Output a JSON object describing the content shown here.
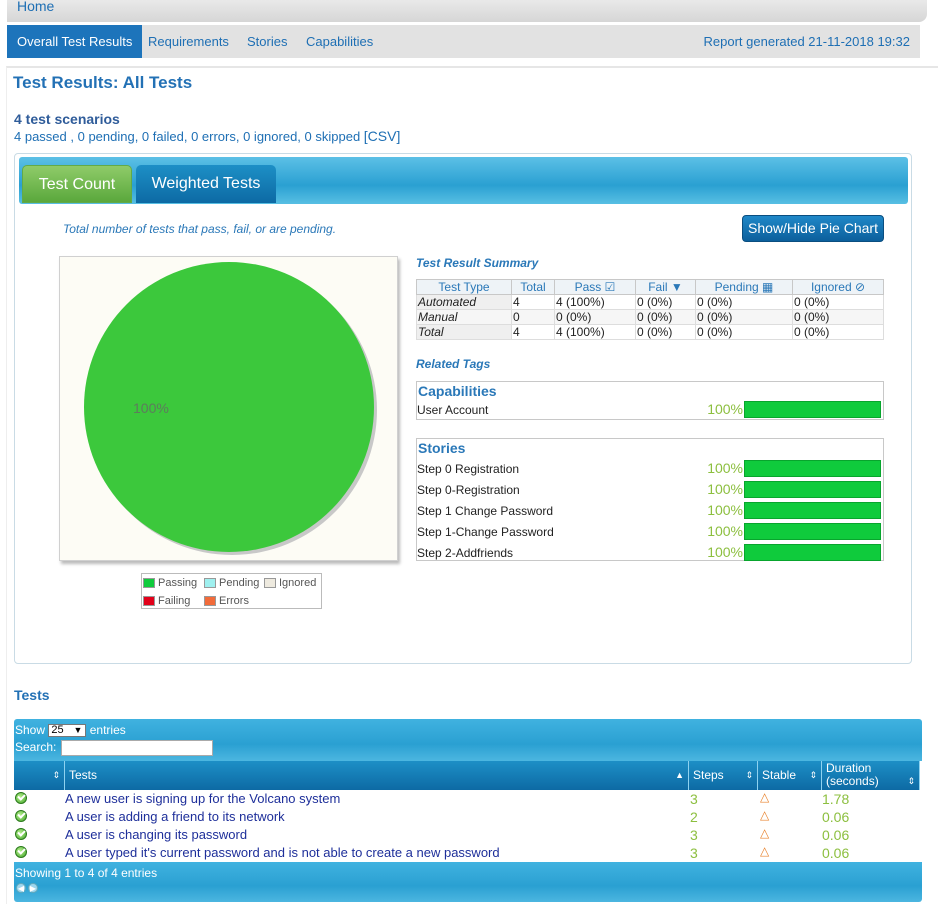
{
  "topbar": {
    "home": "Home"
  },
  "nav": {
    "tabs": [
      {
        "label": "Overall Test Results",
        "active": true
      },
      {
        "label": "Requirements"
      },
      {
        "label": "Stories"
      },
      {
        "label": "Capabilities"
      }
    ],
    "report_generated": "Report generated 21-11-2018 19:32"
  },
  "title": "Test Results: All Tests",
  "scenarios": {
    "count_label": "4 test scenarios",
    "summary": "4 passed , 0 pending, 0 failed, 0 errors, 0 ignored, 0 skipped",
    "csv": "[CSV]"
  },
  "panel": {
    "tabs": [
      "Test Count",
      "Weighted Tests"
    ],
    "caption": "Total number of tests that pass, fail, or are pending.",
    "pie_button": "Show/Hide Pie Chart"
  },
  "chart_data": {
    "type": "pie",
    "slices": [
      {
        "name": "Passing",
        "value": 100,
        "color": "#3cc83c"
      }
    ],
    "labels": [
      "100%"
    ],
    "legend": [
      {
        "name": "Passing",
        "color": "#0fcb3c"
      },
      {
        "name": "Pending",
        "color": "#9ff0ef"
      },
      {
        "name": "Ignored",
        "color": "#eeeadf"
      },
      {
        "name": "Failing",
        "color": "#e2001a"
      },
      {
        "name": "Errors",
        "color": "#f26b3a"
      }
    ]
  },
  "summary": {
    "title": "Test Result Summary",
    "headers": [
      "Test Type",
      "Total",
      "Pass",
      "Fail",
      "Pending",
      "Ignored"
    ],
    "rows": [
      [
        "Automated",
        "4",
        "4 (100%)",
        "0 (0%)",
        "0 (0%)",
        "0 (0%)"
      ],
      [
        "Manual",
        "0",
        "0 (0%)",
        "0 (0%)",
        "0 (0%)",
        "0 (0%)"
      ],
      [
        "Total",
        "4",
        "4 (100%)",
        "0 (0%)",
        "0 (0%)",
        "0 (0%)"
      ]
    ]
  },
  "related": {
    "title": "Related Tags",
    "capabilities": {
      "heading": "Capabilities",
      "items": [
        {
          "name": "User Account",
          "pct": "100%",
          "fraction": 1.0
        }
      ]
    },
    "stories": {
      "heading": "Stories",
      "items": [
        {
          "name": "Step 0 Registration",
          "pct": "100%",
          "fraction": 1.0
        },
        {
          "name": "Step 0-Registration",
          "pct": "100%",
          "fraction": 1.0
        },
        {
          "name": "Step 1 Change Password",
          "pct": "100%",
          "fraction": 1.0
        },
        {
          "name": "Step 1-Change Password",
          "pct": "100%",
          "fraction": 1.0
        },
        {
          "name": "Step 2-Addfriends",
          "pct": "100%",
          "fraction": 1.0
        }
      ]
    }
  },
  "tests": {
    "title": "Tests",
    "show_prefix": "Show",
    "show_value": "25",
    "show_suffix": "entries",
    "search_label": "Search:",
    "columns": [
      "",
      "Tests",
      "Steps",
      "Stable",
      "Duration (seconds)"
    ],
    "rows": [
      {
        "name": "A new user is signing up for the Volcano system",
        "steps": "3",
        "duration": "1.78"
      },
      {
        "name": "A user is adding a friend to its network",
        "steps": "2",
        "duration": "0.06"
      },
      {
        "name": "A user is changing its password",
        "steps": "3",
        "duration": "0.06"
      },
      {
        "name": "A user typed it's current password and is not able to create a new password",
        "steps": "3",
        "duration": "0.06"
      }
    ],
    "footer": "Showing 1 to 4 of 4 entries"
  }
}
